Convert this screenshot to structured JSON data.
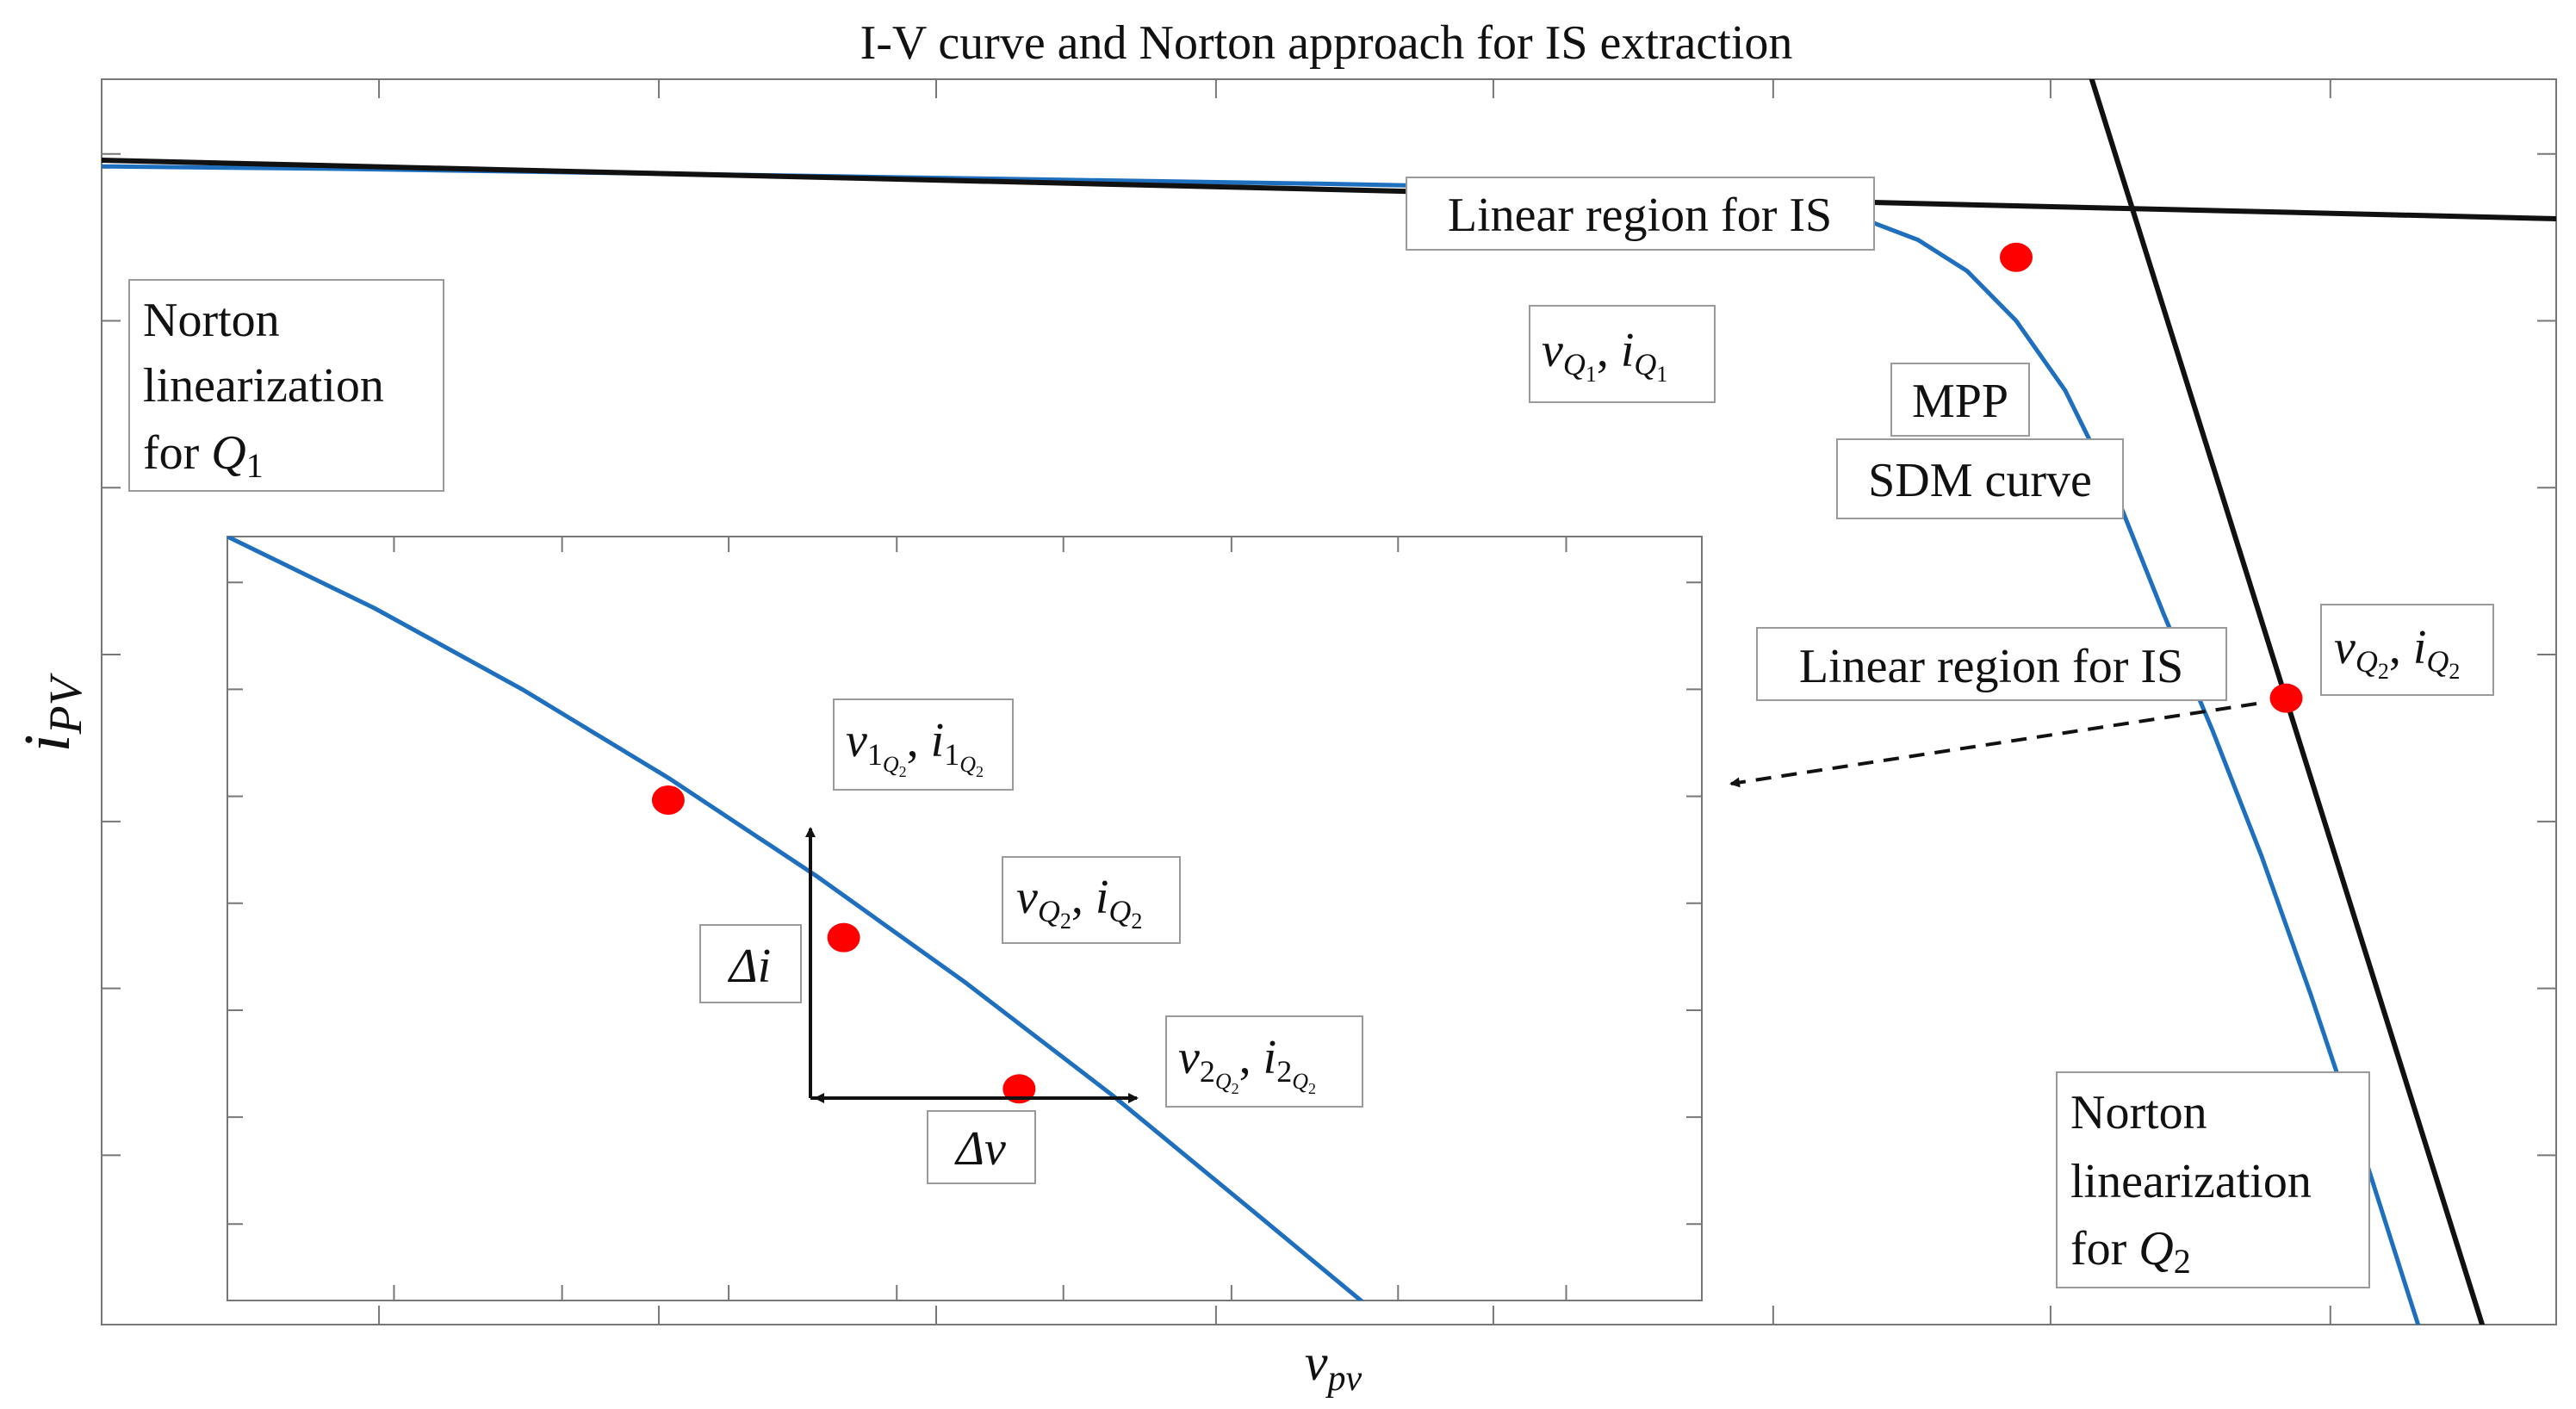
{
  "colors": {
    "curve": "#1f6fbf",
    "norton_line": "#111111",
    "point": "#ff0000",
    "frame": "#777777"
  },
  "chart_data": {
    "type": "line",
    "title": "I-V curve and Norton approach for IS extraction",
    "xlabel_base": "v",
    "xlabel_sub": "pv",
    "ylabel_base": "i",
    "ylabel_sub": "PV",
    "tick_labels_shown": false,
    "grid": false,
    "series": [
      {
        "name": "SDM curve",
        "x": [
          0.0,
          0.1,
          0.2,
          0.3,
          0.4,
          0.5,
          0.55,
          0.6,
          0.65,
          0.7,
          0.72,
          0.74,
          0.76,
          0.78,
          0.8,
          0.82,
          0.84,
          0.86,
          0.88,
          0.9,
          0.92,
          0.94,
          0.96
        ],
        "y": [
          0.93,
          0.928,
          0.925,
          0.922,
          0.919,
          0.916,
          0.914,
          0.911,
          0.906,
          0.894,
          0.886,
          0.871,
          0.846,
          0.806,
          0.75,
          0.67,
          0.571,
          0.477,
          0.376,
          0.265,
          0.147,
          0.023,
          -0.1
        ]
      }
    ],
    "norton_lines": [
      {
        "name": "Norton linearization for Q1",
        "x": [
          0.0,
          1.0
        ],
        "y": [
          0.935,
          0.888
        ]
      },
      {
        "name": "Norton linearization for Q2",
        "x": [
          0.81,
          0.97
        ],
        "y": [
          1.005,
          -0.001
        ]
      }
    ],
    "points": [
      {
        "label": "Q1",
        "x": 0.603,
        "y": 0.91
      },
      {
        "label": "MPP",
        "x": 0.78,
        "y": 0.857
      },
      {
        "label": "Q2",
        "x": 0.89,
        "y": 0.503
      }
    ],
    "inset": {
      "curve_x": [
        0.0,
        0.1,
        0.2,
        0.3,
        0.4,
        0.5,
        0.6,
        0.7,
        0.8
      ],
      "curve_y": [
        1.0,
        0.906,
        0.8,
        0.683,
        0.555,
        0.417,
        0.269,
        0.11,
        -0.05
      ],
      "points": [
        {
          "label": "1Q2",
          "x": 0.299,
          "y": 0.655
        },
        {
          "label": "Q2",
          "x": 0.418,
          "y": 0.475
        },
        {
          "label": "2Q2",
          "x": 0.537,
          "y": 0.277
        }
      ]
    }
  },
  "annotations": {
    "linear_region_top": "Linear region for IS",
    "linear_region_right": "Linear region for IS",
    "norton_q1_line1": "Norton",
    "norton_q1_line2": "linearization",
    "norton_q1_line3_prefix": "for ",
    "norton_q1_var": "Q",
    "norton_q1_sub": "1",
    "norton_q2_line1": "Norton",
    "norton_q2_line2": "linearization",
    "norton_q2_line3_prefix": "for ",
    "norton_q2_var": "Q",
    "norton_q2_sub": "2",
    "mpp": "MPP",
    "sdm_curve": "SDM curve",
    "delta_i": "Δi",
    "delta_v": "Δv",
    "q1_v": "v",
    "q1_i": "i",
    "q_sub": "Q",
    "q1_index": "1",
    "q2_index": "2",
    "comma": ", ",
    "p1_index": "1",
    "p2_index": "2"
  }
}
